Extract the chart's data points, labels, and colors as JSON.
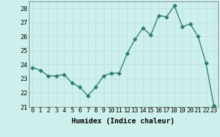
{
  "x": [
    0,
    1,
    2,
    3,
    4,
    5,
    6,
    7,
    8,
    9,
    10,
    11,
    12,
    13,
    14,
    15,
    16,
    17,
    18,
    19,
    20,
    21,
    22,
    23
  ],
  "y": [
    23.8,
    23.6,
    23.2,
    23.2,
    23.3,
    22.7,
    22.4,
    21.8,
    22.4,
    23.2,
    23.4,
    23.4,
    24.8,
    25.8,
    26.6,
    26.1,
    27.5,
    27.4,
    28.2,
    26.7,
    26.9,
    26.0,
    24.1,
    21.1
  ],
  "line_color": "#2e7d6e",
  "marker": "D",
  "marker_size": 2.5,
  "bg_color": "#cef0ec",
  "grid_color": "#b8ddd8",
  "xlabel": "Humidex (Indice chaleur)",
  "ylim": [
    21,
    28.5
  ],
  "yticks": [
    21,
    22,
    23,
    24,
    25,
    26,
    27,
    28
  ],
  "xticks": [
    0,
    1,
    2,
    3,
    4,
    5,
    6,
    7,
    8,
    9,
    10,
    11,
    12,
    13,
    14,
    15,
    16,
    17,
    18,
    19,
    20,
    21,
    22,
    23
  ],
  "xlabel_fontsize": 7.5,
  "tick_fontsize": 6.5,
  "line_width": 1.0
}
